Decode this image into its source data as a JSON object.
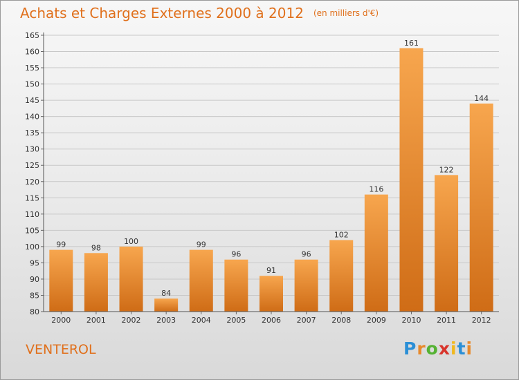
{
  "title": "Achats et Charges Externes 2000 à 2012",
  "unit": "(en milliers d'€)",
  "commune": "VENTEROL",
  "logo": {
    "letters": [
      "P",
      "r",
      "o",
      "x",
      "i",
      "t",
      "i"
    ],
    "colors": [
      "#2b8fd6",
      "#e8892a",
      "#55b233",
      "#d8342b",
      "#f0b81e",
      "#2b8fd6",
      "#e8892a"
    ]
  },
  "chart_data": {
    "type": "bar",
    "title": "Achats et Charges Externes 2000 à 2012",
    "categories": [
      "2000",
      "2001",
      "2002",
      "2003",
      "2004",
      "2005",
      "2006",
      "2007",
      "2008",
      "2009",
      "2010",
      "2011",
      "2012"
    ],
    "values": [
      99,
      98,
      100,
      84,
      99,
      96,
      91,
      96,
      102,
      116,
      161,
      122,
      144
    ],
    "ylim": [
      80,
      165
    ],
    "yticks": [
      80,
      85,
      90,
      95,
      100,
      105,
      110,
      115,
      120,
      125,
      130,
      135,
      140,
      145,
      150,
      155,
      160,
      165
    ],
    "grid": true,
    "bar_color": "#f0a050"
  }
}
